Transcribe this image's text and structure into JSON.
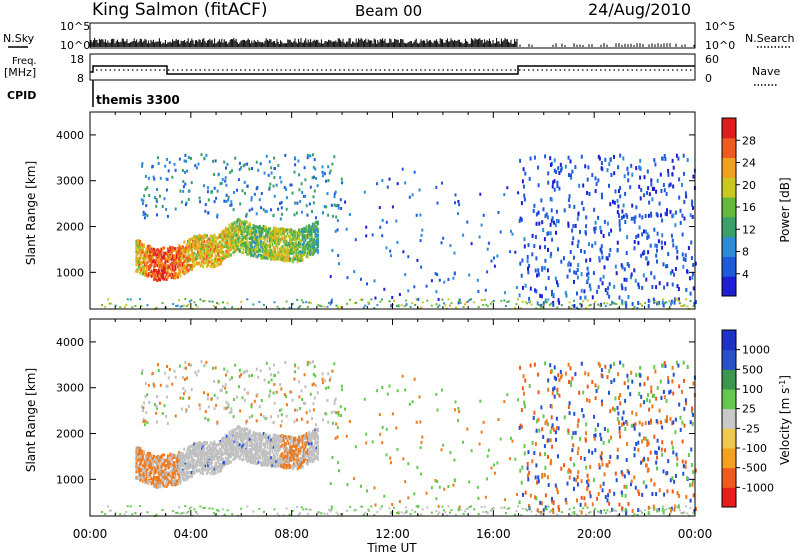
{
  "header": {
    "station": "King Salmon (fitACF)",
    "beam": "Beam 00",
    "date": "24/Aug/2010"
  },
  "panels": {
    "nsky": {
      "label": "N.Sky",
      "right_label": "N.Search",
      "left_ticks": [
        "10^5",
        "10^0"
      ],
      "right_ticks": [
        "10^5",
        "10^0"
      ]
    },
    "freq": {
      "label_line1": "Freq.",
      "label_line2": "[MHz]",
      "left_ticks": [
        "18",
        "8"
      ],
      "right_ticks": [
        "60",
        "0"
      ],
      "right_label": "Nave"
    },
    "cpid": {
      "label": "CPID",
      "program": "themis 3300"
    }
  },
  "colors": {
    "power_scale": [
      "#1e1ed2",
      "#1e5adc",
      "#2e8bd8",
      "#3aa06a",
      "#66b83c",
      "#c8c81e",
      "#f0a01e",
      "#f05a1e",
      "#dc1e1e"
    ],
    "velocity_scale": [
      "#e61e1e",
      "#f05a1e",
      "#f5a01e",
      "#f0c850",
      "#c8c8c8",
      "#64c850",
      "#3c9650",
      "#2850c8",
      "#1e32c8"
    ],
    "velocity_ground": "#c0c0c0",
    "velocity_neg": "#ec7a1e",
    "velocity_pos": "#2050d0"
  },
  "chart_data": [
    {
      "type": "heatmap",
      "name": "power",
      "xlabel": "",
      "ylabel": "Slant Range [km]",
      "xlim_hours": [
        0,
        24
      ],
      "ylim": [
        200,
        4500
      ],
      "yticks": [
        1000,
        2000,
        3000,
        4000
      ],
      "colorbar": {
        "label": "Power [dB]",
        "range": [
          0,
          32
        ],
        "ticks": [
          "4",
          "8",
          "12",
          "16",
          "20",
          "24",
          "28"
        ]
      },
      "echo_band": {
        "x_hours": [
          1.8,
          2.6,
          3.4,
          4.2,
          5.0,
          5.8,
          6.6,
          7.4,
          8.2,
          9.0
        ],
        "range_km": [
          1400,
          1200,
          1250,
          1500,
          1500,
          1850,
          1700,
          1650,
          1600,
          1800
        ],
        "power_db": [
          20,
          28,
          26,
          20,
          22,
          18,
          14,
          20,
          16,
          12
        ]
      }
    },
    {
      "type": "heatmap",
      "name": "velocity",
      "xlabel": "Time UT",
      "ylabel": "Slant Range [km]",
      "xlim_hours": [
        0,
        24
      ],
      "ylim": [
        200,
        4500
      ],
      "yticks": [
        1000,
        2000,
        3000,
        4000
      ],
      "xtick_labels": [
        "00:00",
        "04:00",
        "08:00",
        "12:00",
        "16:00",
        "20:00",
        "00:00"
      ],
      "colorbar": {
        "label": "Velocity [m s-1]",
        "ticks": [
          "1000",
          "500",
          "100",
          "25",
          "-25",
          "-100",
          "-500",
          "-1000"
        ]
      }
    }
  ]
}
